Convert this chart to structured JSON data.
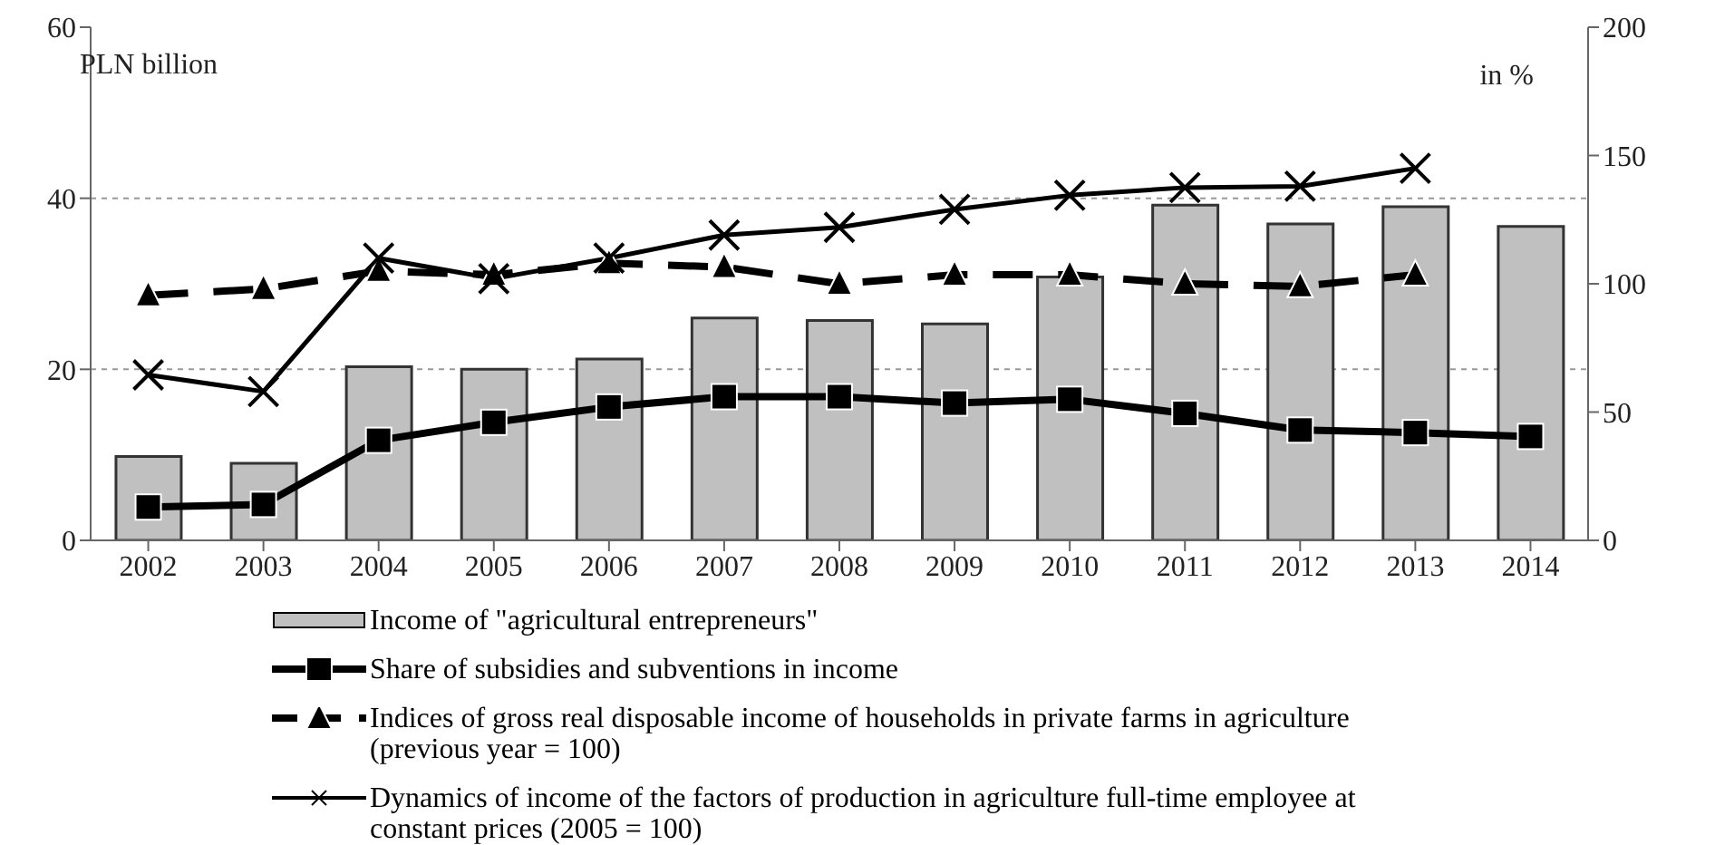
{
  "chart_data": {
    "type": "bar",
    "ylabel": "PLN billion",
    "y2label": "in %",
    "categories": [
      "2002",
      "2003",
      "2004",
      "2005",
      "2006",
      "2007",
      "2008",
      "2009",
      "2010",
      "2011",
      "2012",
      "2013",
      "2014"
    ],
    "series": [
      {
        "name": "Income of \"agricultural entrepreneurs\"",
        "color": "#c0c0c0",
        "values": [
          9.8,
          9,
          20.3,
          20,
          21.2,
          26,
          25.7,
          25.3,
          30.8,
          39.2,
          37,
          39,
          36.7
        ]
      },
      {
        "name": "Share of subsidies and subventions in income",
        "type": "line",
        "axis": "y2",
        "color": "#000000",
        "marker": "square",
        "line_style": "solid",
        "values": [
          13,
          14,
          39,
          46,
          52,
          56,
          56,
          53.5,
          55,
          49.5,
          43,
          42,
          40.5
        ]
      },
      {
        "name": "Indices of gross real disposable income of households in private farms in agriculture (previous year = 100)",
        "type": "line",
        "axis": "y2",
        "color": "#000000",
        "marker": "triangle",
        "line_style": "dashed",
        "values": [
          95.5,
          98,
          105,
          103.5,
          108,
          106.5,
          100,
          103.5,
          103.5,
          100,
          99,
          103.5,
          null
        ]
      },
      {
        "name": "Dynamics of income of the factors of production in agriculture full-time employee at constant prices (2005 = 100)",
        "type": "line",
        "axis": "y2",
        "color": "#000000",
        "marker": "cross",
        "line_style": "solid",
        "values": [
          64.5,
          58,
          110,
          102,
          110,
          119,
          122,
          129,
          134.5,
          137.5,
          138,
          145,
          null
        ]
      }
    ],
    "ylim": [
      0,
      60
    ],
    "yticks": [
      0,
      20,
      40,
      60
    ],
    "y2lim": [
      0,
      200
    ],
    "y2ticks": [
      0,
      50,
      100,
      150,
      200
    ],
    "grid": "y",
    "legend": "bottom"
  }
}
